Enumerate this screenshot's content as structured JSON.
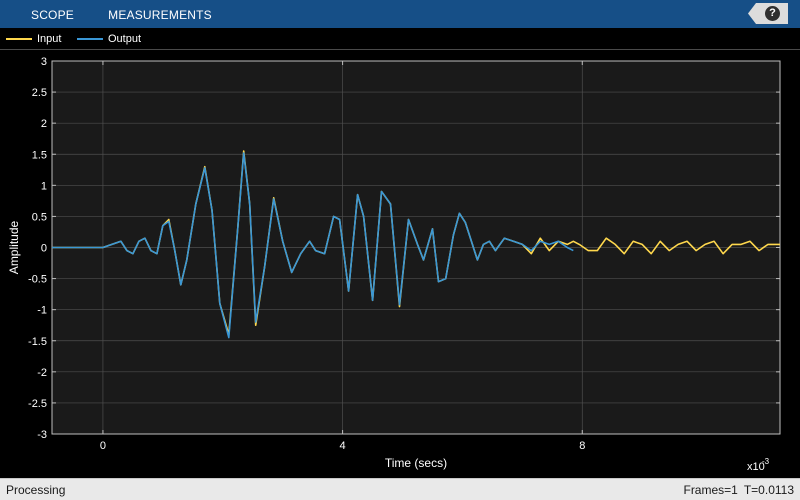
{
  "toolstrip": {
    "tabs": [
      "SCOPE",
      "MEASUREMENTS"
    ],
    "help_label": "?"
  },
  "legend": {
    "items": [
      {
        "label": "Input",
        "color": "#ffd84d"
      },
      {
        "label": "Output",
        "color": "#3a97d6"
      }
    ]
  },
  "status": {
    "left": "Processing",
    "frames": "Frames=1",
    "time": "T=0.0113"
  },
  "colors": {
    "toolstrip_bg": "#164f87",
    "plot_bg": "#1a1a1a",
    "grid": "#4f4f4f",
    "axis_text": "#ffffff",
    "input": "#ffd84d",
    "output": "#3a97d6"
  },
  "chart_data": {
    "type": "line",
    "title": "",
    "xlabel": "Time (secs)",
    "ylabel": "Amplitude",
    "x_exponent_label": "x10",
    "x_exponent_power": "-3",
    "xlim": [
      -0.00085,
      0.0113
    ],
    "ylim": [
      -3,
      3
    ],
    "x_ticks": [
      0,
      0.004,
      0.008
    ],
    "x_tick_labels": [
      "0",
      "4",
      "8"
    ],
    "y_ticks": [
      -3,
      -2.5,
      -2,
      -1.5,
      -1,
      -0.5,
      0,
      0.5,
      1,
      1.5,
      2,
      2.5,
      3
    ],
    "y_tick_labels": [
      "-3",
      "-2.5",
      "-2",
      "-1.5",
      "-1",
      "-0.5",
      "0",
      "0.5",
      "1",
      "1.5",
      "2",
      "2.5",
      "3"
    ],
    "grid": true,
    "legend_position": "top-left",
    "series": [
      {
        "name": "Input",
        "color": "#ffd84d",
        "x_ms": [
          -0.85,
          -0.5,
          0,
          0.15,
          0.3,
          0.4,
          0.5,
          0.6,
          0.7,
          0.8,
          0.9,
          1.0,
          1.1,
          1.2,
          1.3,
          1.4,
          1.55,
          1.7,
          1.82,
          1.95,
          2.1,
          2.25,
          2.35,
          2.45,
          2.55,
          2.7,
          2.85,
          3.0,
          3.15,
          3.3,
          3.45,
          3.55,
          3.7,
          3.85,
          3.95,
          4.1,
          4.25,
          4.35,
          4.5,
          4.65,
          4.8,
          4.95,
          5.1,
          5.25,
          5.35,
          5.5,
          5.6,
          5.72,
          5.85,
          5.95,
          6.05,
          6.15,
          6.25,
          6.35,
          6.45,
          6.55,
          6.7,
          6.85,
          7.0,
          7.15,
          7.3,
          7.45,
          7.6,
          7.75,
          7.85,
          7.95,
          8.1,
          8.25,
          8.4,
          8.55,
          8.7,
          8.85,
          9.0,
          9.15,
          9.3,
          9.45,
          9.6,
          9.75,
          9.9,
          10.05,
          10.2,
          10.35,
          10.5,
          10.65,
          10.8,
          10.95,
          11.1,
          11.3
        ],
        "y": [
          0,
          0,
          0,
          0.05,
          0.1,
          -0.05,
          -0.1,
          0.1,
          0.15,
          -0.05,
          -0.1,
          0.35,
          0.45,
          -0.05,
          -0.6,
          -0.2,
          0.7,
          1.3,
          0.6,
          -0.9,
          -1.4,
          0.3,
          1.55,
          0.7,
          -1.25,
          -0.3,
          0.8,
          0.1,
          -0.4,
          -0.1,
          0.1,
          -0.05,
          -0.1,
          0.5,
          0.45,
          -0.7,
          0.85,
          0.5,
          -0.85,
          0.9,
          0.7,
          -0.95,
          0.45,
          0.05,
          -0.2,
          0.3,
          -0.55,
          -0.5,
          0.2,
          0.55,
          0.4,
          0.1,
          -0.2,
          0.05,
          0.1,
          -0.05,
          0.15,
          0.1,
          0.05,
          -0.1,
          0.15,
          -0.05,
          0.1,
          0.05,
          0.1,
          0.05,
          -0.05,
          -0.05,
          0.15,
          0.05,
          -0.1,
          0.1,
          0.05,
          -0.1,
          0.1,
          -0.05,
          0.05,
          0.1,
          -0.05,
          0.05,
          0.1,
          -0.1,
          0.05,
          0.05,
          0.1,
          -0.05,
          0.05,
          0.05
        ]
      },
      {
        "name": "Output",
        "color": "#3a97d6",
        "x_ms": [
          -0.85,
          -0.5,
          0,
          0.15,
          0.3,
          0.4,
          0.5,
          0.6,
          0.7,
          0.8,
          0.9,
          1.0,
          1.1,
          1.2,
          1.3,
          1.4,
          1.55,
          1.7,
          1.82,
          1.95,
          2.1,
          2.25,
          2.35,
          2.45,
          2.55,
          2.7,
          2.85,
          3.0,
          3.15,
          3.3,
          3.45,
          3.55,
          3.7,
          3.85,
          3.95,
          4.1,
          4.25,
          4.35,
          4.5,
          4.65,
          4.8,
          4.95,
          5.1,
          5.25,
          5.35,
          5.5,
          5.6,
          5.72,
          5.85,
          5.95,
          6.05,
          6.15,
          6.25,
          6.35,
          6.45,
          6.55,
          6.7,
          6.85,
          7.0,
          7.15,
          7.3,
          7.45,
          7.6,
          7.75,
          7.85
        ],
        "y": [
          0,
          0,
          0,
          0.05,
          0.1,
          -0.05,
          -0.1,
          0.1,
          0.15,
          -0.05,
          -0.1,
          0.35,
          0.42,
          -0.05,
          -0.6,
          -0.2,
          0.7,
          1.28,
          0.6,
          -0.9,
          -1.45,
          0.3,
          1.52,
          0.7,
          -1.2,
          -0.3,
          0.78,
          0.1,
          -0.4,
          -0.1,
          0.1,
          -0.05,
          -0.1,
          0.5,
          0.45,
          -0.7,
          0.85,
          0.5,
          -0.85,
          0.9,
          0.7,
          -0.92,
          0.45,
          0.05,
          -0.2,
          0.3,
          -0.55,
          -0.5,
          0.2,
          0.55,
          0.4,
          0.1,
          -0.2,
          0.05,
          0.1,
          -0.05,
          0.15,
          0.1,
          0.05,
          -0.05,
          0.1,
          0.05,
          0.1,
          0.0,
          -0.05
        ]
      }
    ]
  }
}
